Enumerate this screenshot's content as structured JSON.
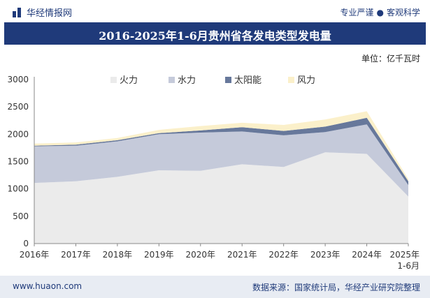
{
  "header": {
    "brand": "华经情报网",
    "tagline_left": "专业严谨",
    "tagline_right": "客观科学"
  },
  "footer": {
    "site": "www.huaon.com",
    "source": "数据来源：国家统计局，华经产业研究院整理"
  },
  "colors": {
    "fire": "#ebebeb",
    "water": "#c5cada",
    "solar": "#67789b",
    "wind": "#fbf0ca",
    "title_bar": "#1f3a7a"
  },
  "chart_data": {
    "type": "area",
    "stacked": true,
    "title": "2016-2025年1-6月贵州省各发电类型发电量",
    "unit_label": "单位：亿千瓦时",
    "categories": [
      "2016年",
      "2017年",
      "2018年",
      "2019年",
      "2020年",
      "2021年",
      "2022年",
      "2023年",
      "2024年",
      "2025年\n1-6月"
    ],
    "ylim": [
      0,
      3000
    ],
    "yticks": [
      0,
      500,
      1000,
      1500,
      2000,
      2500,
      3000
    ],
    "legend_position": "top",
    "series": [
      {
        "name": "火力",
        "color": "#ebebeb",
        "values": [
          1110,
          1140,
          1220,
          1340,
          1330,
          1450,
          1400,
          1670,
          1640,
          860
        ]
      },
      {
        "name": "水力",
        "color": "#c5cada",
        "values": [
          670,
          650,
          650,
          660,
          700,
          600,
          580,
          370,
          540,
          210
        ]
      },
      {
        "name": "太阳能",
        "color": "#67789b",
        "values": [
          10,
          20,
          20,
          20,
          40,
          80,
          80,
          100,
          120,
          70
        ]
      },
      {
        "name": "风力",
        "color": "#fbf0ca",
        "values": [
          40,
          40,
          40,
          60,
          80,
          80,
          110,
          130,
          120,
          40
        ]
      }
    ]
  }
}
